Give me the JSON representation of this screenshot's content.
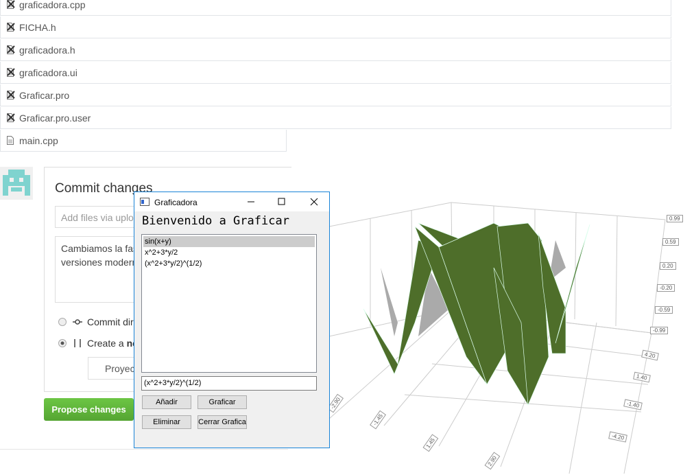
{
  "files": [
    "graficadora.cpp",
    "FICHA.h",
    "graficadora.h",
    "graficadora.ui",
    "Graficar.pro",
    "Graficar.pro.user",
    "main.cpp"
  ],
  "commit": {
    "title": "Commit changes",
    "input_placeholder": "Add files via uplo",
    "message_lines": [
      "Cambiamos la fas",
      "versiones modern"
    ],
    "option_direct": "Commit dir",
    "option_new_prefix": "Create a ",
    "option_new_bold": "ne",
    "branch": "Proyec",
    "submit": "Propose changes"
  },
  "window": {
    "title": "Graficadora",
    "heading": "Bienvenido a Graficar",
    "functions": [
      "sin(x+y)",
      "x^2+3*y/2",
      "(x^2+3*y/2)^(1/2)"
    ],
    "input": "(x^2+3*y/2)^(1/2)",
    "buttons": [
      "Añadir",
      "Graficar",
      "Eliminar",
      "Cerrar Grafica"
    ]
  },
  "plot": {
    "z_ticks": [
      "0.99",
      "0.59",
      "0.20",
      "-0.20",
      "-0.59",
      "-0.99"
    ],
    "y_ticks": [
      "4.20",
      "1.40",
      "-1.40",
      "-4.20"
    ],
    "x_ticks": [
      "-2.90",
      "-1.45",
      "1.45",
      "2.90"
    ]
  }
}
